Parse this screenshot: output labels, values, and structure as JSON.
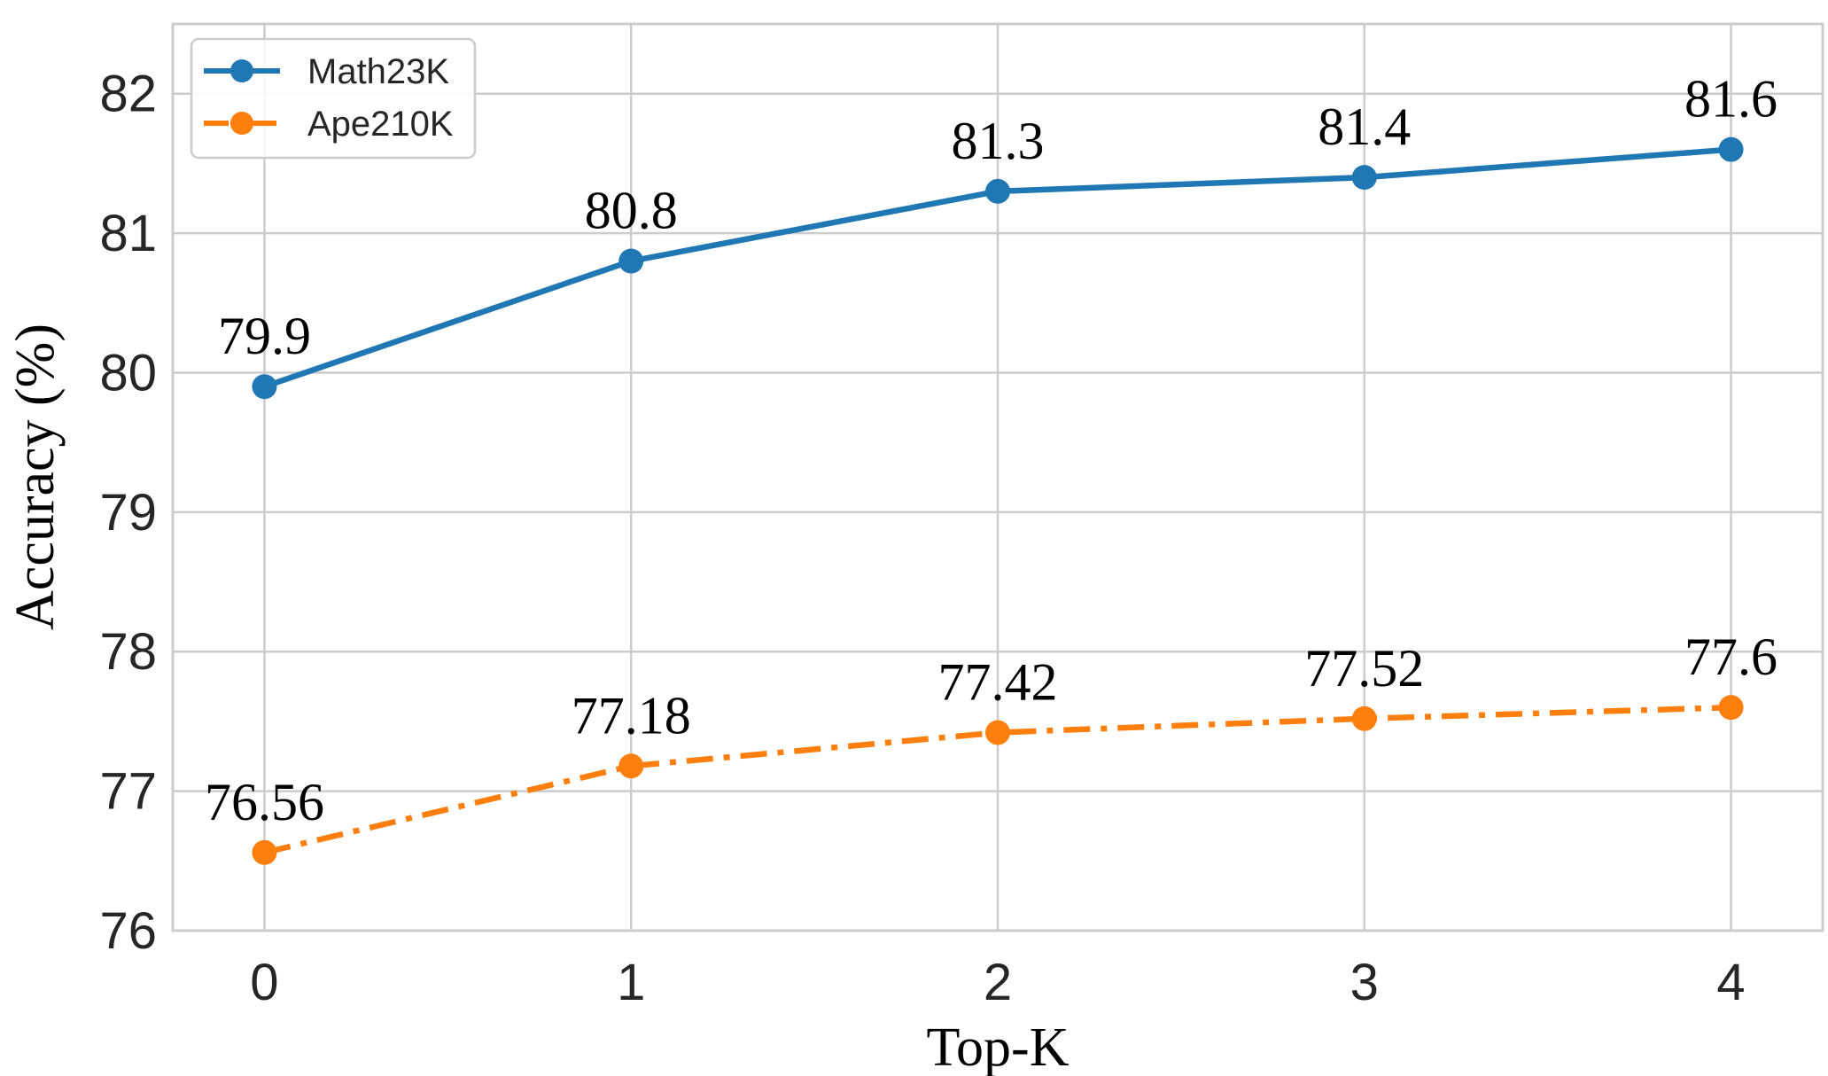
{
  "chart_data": {
    "type": "line",
    "x": [
      0,
      1,
      2,
      3,
      4
    ],
    "series": [
      {
        "name": "Math23K",
        "values": [
          79.9,
          80.8,
          81.3,
          81.4,
          81.6
        ],
        "labels": [
          "79.9",
          "80.8",
          "81.3",
          "81.4",
          "81.6"
        ],
        "color": "#1f77b4",
        "line_style": "solid",
        "marker": "circle"
      },
      {
        "name": "Ape210K",
        "values": [
          76.56,
          77.18,
          77.42,
          77.52,
          77.6
        ],
        "labels": [
          "76.56",
          "77.18",
          "77.42",
          "77.52",
          "77.6"
        ],
        "color": "#ff7f0e",
        "line_style": "dashdot",
        "marker": "circle"
      }
    ],
    "xlabel": "Top-K",
    "ylabel": "Accuracy (%)",
    "xlim": [
      -0.25,
      4.25
    ],
    "ylim": [
      76,
      82.5
    ],
    "xticks": [
      0,
      1,
      2,
      3,
      4
    ],
    "yticks": [
      76,
      77,
      78,
      79,
      80,
      81,
      82
    ],
    "grid": true,
    "legend_position": "top-left"
  }
}
